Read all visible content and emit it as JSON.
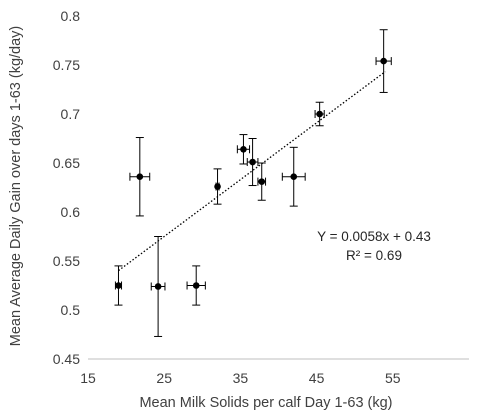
{
  "chart_data": {
    "type": "scatter",
    "title": "",
    "xlabel": "Mean Milk Solids per calf Day 1-63 (kg)",
    "ylabel": "Mean Average Daily Gain over days 1-63 (kg/day)",
    "xlim": [
      15,
      65
    ],
    "ylim": [
      0.45,
      0.8
    ],
    "x_ticks": [
      "15",
      "25",
      "35",
      "45",
      "55"
    ],
    "y_ticks": [
      "0.45",
      "0.5",
      "0.55",
      "0.6",
      "0.65",
      "0.7",
      "0.75",
      "0.8"
    ],
    "grid": false,
    "legend": "none",
    "points": [
      {
        "x": 19.0,
        "y": 0.525,
        "x_err": 0.4,
        "y_err": 0.02
      },
      {
        "x": 21.8,
        "y": 0.636,
        "x_err": 1.3,
        "y_err": 0.04
      },
      {
        "x": 24.2,
        "y": 0.524,
        "x_err": 0.9,
        "y_err": 0.051
      },
      {
        "x": 29.2,
        "y": 0.525,
        "x_err": 1.2,
        "y_err": 0.02
      },
      {
        "x": 32.0,
        "y": 0.626,
        "x_err": 0.2,
        "y_err": 0.018
      },
      {
        "x": 35.4,
        "y": 0.664,
        "x_err": 0.8,
        "y_err": 0.015
      },
      {
        "x": 36.6,
        "y": 0.651,
        "x_err": 0.7,
        "y_err": 0.024
      },
      {
        "x": 37.8,
        "y": 0.631,
        "x_err": 0.5,
        "y_err": 0.019
      },
      {
        "x": 42.0,
        "y": 0.636,
        "x_err": 1.5,
        "y_err": 0.03
      },
      {
        "x": 45.4,
        "y": 0.7,
        "x_err": 0.6,
        "y_err": 0.012
      },
      {
        "x": 53.8,
        "y": 0.754,
        "x_err": 1.0,
        "y_err": 0.032
      }
    ],
    "trendline": {
      "style": "dotted",
      "x_range": [
        19,
        54
      ],
      "slope": 0.0058,
      "intercept": 0.43
    },
    "annotation_equation": "Y = 0.0058x + 0.43",
    "annotation_r2": "R² = 0.69"
  },
  "colors": {
    "points": "#000000",
    "axis": "#bfbfbf",
    "text": "#404040",
    "trendline": "#000000"
  }
}
